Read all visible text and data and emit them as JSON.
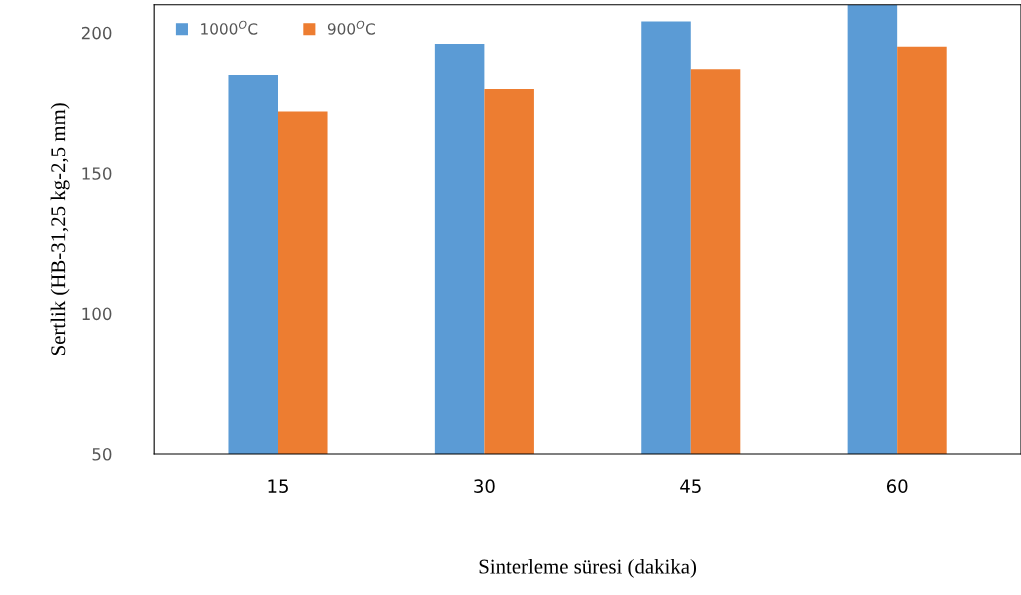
{
  "chart_data": {
    "type": "bar",
    "xlabel": "Sinterleme süresi (dakika)",
    "ylabel": "Sertlik (HB-31,25 kg-2,5 mm)",
    "categories": [
      "15",
      "30",
      "45",
      "60"
    ],
    "series": [
      {
        "name": "1000$^{O}$C",
        "color": "#5b9bd5",
        "values": [
          185,
          196,
          204,
          210
        ]
      },
      {
        "name": "900$^{O}$C",
        "color": "#ed7d31",
        "values": [
          172,
          180,
          187,
          195
        ]
      }
    ],
    "ylim": [
      50,
      210
    ],
    "yticks": [
      50,
      100,
      150,
      200
    ],
    "grid": false,
    "legend": "top left"
  }
}
